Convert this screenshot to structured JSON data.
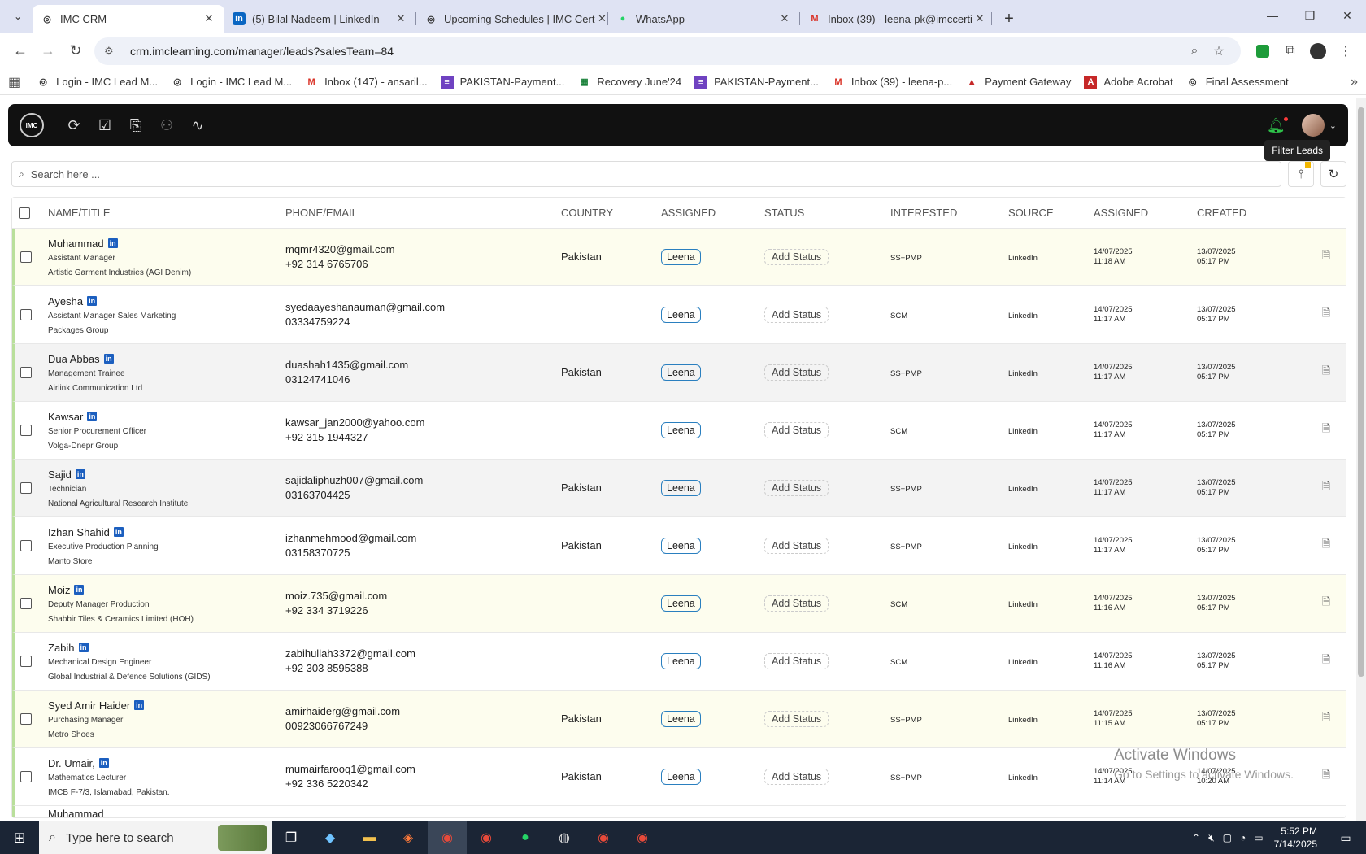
{
  "browser": {
    "tabs": [
      {
        "title": "IMC CRM",
        "active": true,
        "favicon": "imc-icon"
      },
      {
        "title": "(5) Bilal Nadeem | LinkedIn",
        "active": false,
        "favicon": "linkedin-icon"
      },
      {
        "title": "Upcoming Schedules | IMC Cert",
        "active": false,
        "favicon": "imc-icon"
      },
      {
        "title": "WhatsApp",
        "active": false,
        "favicon": "whatsapp-icon"
      },
      {
        "title": "Inbox (39) - leena-pk@imccerti",
        "active": false,
        "favicon": "gmail-icon"
      }
    ],
    "url": "crm.imclearning.com/manager/leads?salesTeam=84",
    "bookmarks": [
      {
        "label": "Login - IMC Lead M...",
        "icon": "imc-icon"
      },
      {
        "label": "Login - IMC Lead M...",
        "icon": "imc-icon"
      },
      {
        "label": "Inbox (147) - ansaril...",
        "icon": "gmail-icon"
      },
      {
        "label": "PAKISTAN-Payment...",
        "icon": "forms-icon"
      },
      {
        "label": "Recovery June'24",
        "icon": "sheets-icon"
      },
      {
        "label": "PAKISTAN-Payment...",
        "icon": "forms-icon"
      },
      {
        "label": "Inbox (39) - leena-p...",
        "icon": "gmail-icon"
      },
      {
        "label": "Payment Gateway",
        "icon": "payment-icon"
      },
      {
        "label": "Adobe Acrobat",
        "icon": "acrobat-icon"
      },
      {
        "label": "Final Assessment",
        "icon": "imc-icon"
      }
    ]
  },
  "app": {
    "tooltip": "Filter Leads",
    "search_placeholder": "Search here ...",
    "columns": {
      "name": "NAME/TITLE",
      "phone": "PHONE/EMAIL",
      "country": "COUNTRY",
      "assigned": "ASSIGNED",
      "status": "STATUS",
      "interested": "INTERESTED",
      "source": "SOURCE",
      "assigned2": "ASSIGNED",
      "created": "CREATED"
    },
    "rows": [
      {
        "name": "Muhammad",
        "title": "Assistant Manager",
        "company": "Artistic Garment Industries (AGI Denim)",
        "email": "mqmr4320@gmail.com",
        "phone": "+92 314 6765706",
        "country": "Pakistan",
        "assigned": "Leena",
        "status": "Add Status",
        "interested": "SS+PMP",
        "source": "LinkedIn",
        "assigned_date": "14/07/2025",
        "assigned_time": "11:18 AM",
        "created_date": "13/07/2025",
        "created_time": "05:17 PM",
        "bg": "bg-y"
      },
      {
        "name": "Ayesha",
        "title": "Assistant Manager Sales Marketing",
        "company": "Packages Group",
        "email": "syedaayeshanauman@gmail.com",
        "phone": "03334759224",
        "country": "",
        "assigned": "Leena",
        "status": "Add Status",
        "interested": "SCM",
        "source": "LinkedIn",
        "assigned_date": "14/07/2025",
        "assigned_time": "11:17 AM",
        "created_date": "13/07/2025",
        "created_time": "05:17 PM",
        "bg": "bg-w"
      },
      {
        "name": "Dua Abbas",
        "title": "Management Trainee",
        "company": "Airlink Communication Ltd",
        "email": "duashah1435@gmail.com",
        "phone": "03124741046",
        "country": "Pakistan",
        "assigned": "Leena",
        "status": "Add Status",
        "interested": "SS+PMP",
        "source": "LinkedIn",
        "assigned_date": "14/07/2025",
        "assigned_time": "11:17 AM",
        "created_date": "13/07/2025",
        "created_time": "05:17 PM",
        "bg": "bg-g"
      },
      {
        "name": "Kawsar",
        "title": "Senior Procurement Officer",
        "company": "Volga-Dnepr Group",
        "email": "kawsar_jan2000@yahoo.com",
        "phone": "+92 315 1944327",
        "country": "",
        "assigned": "Leena",
        "status": "Add Status",
        "interested": "SCM",
        "source": "LinkedIn",
        "assigned_date": "14/07/2025",
        "assigned_time": "11:17 AM",
        "created_date": "13/07/2025",
        "created_time": "05:17 PM",
        "bg": "bg-w"
      },
      {
        "name": "Sajid",
        "title": "Technician",
        "company": "National Agricultural Research Institute",
        "email": "sajidaliphuzh007@gmail.com",
        "phone": "03163704425",
        "country": "Pakistan",
        "assigned": "Leena",
        "status": "Add Status",
        "interested": "SS+PMP",
        "source": "LinkedIn",
        "assigned_date": "14/07/2025",
        "assigned_time": "11:17 AM",
        "created_date": "13/07/2025",
        "created_time": "05:17 PM",
        "bg": "bg-g"
      },
      {
        "name": "Izhan Shahid",
        "title": "Executive Production Planning",
        "company": "Manto Store",
        "email": "izhanmehmood@gmail.com",
        "phone": "03158370725",
        "country": "Pakistan",
        "assigned": "Leena",
        "status": "Add Status",
        "interested": "SS+PMP",
        "source": "LinkedIn",
        "assigned_date": "14/07/2025",
        "assigned_time": "11:17 AM",
        "created_date": "13/07/2025",
        "created_time": "05:17 PM",
        "bg": "bg-w"
      },
      {
        "name": "Moiz",
        "title": "Deputy Manager Production",
        "company": "Shabbir Tiles & Ceramics Limited (HOH)",
        "email": "moiz.735@gmail.com",
        "phone": "+92 334 3719226",
        "country": "",
        "assigned": "Leena",
        "status": "Add Status",
        "interested": "SCM",
        "source": "LinkedIn",
        "assigned_date": "14/07/2025",
        "assigned_time": "11:16 AM",
        "created_date": "13/07/2025",
        "created_time": "05:17 PM",
        "bg": "bg-y"
      },
      {
        "name": "Zabih",
        "title": "Mechanical Design Engineer",
        "company": "Global Industrial & Defence Solutions (GIDS)",
        "email": "zabihullah3372@gmail.com",
        "phone": "+92 303 8595388",
        "country": "",
        "assigned": "Leena",
        "status": "Add Status",
        "interested": "SCM",
        "source": "LinkedIn",
        "assigned_date": "14/07/2025",
        "assigned_time": "11:16 AM",
        "created_date": "13/07/2025",
        "created_time": "05:17 PM",
        "bg": "bg-w"
      },
      {
        "name": "Syed Amir Haider",
        "title": "Purchasing Manager",
        "company": "Metro Shoes",
        "email": "amirhaiderg@gmail.com",
        "phone": "00923066767249",
        "country": "Pakistan",
        "assigned": "Leena",
        "status": "Add Status",
        "interested": "SS+PMP",
        "source": "LinkedIn",
        "assigned_date": "14/07/2025",
        "assigned_time": "11:15 AM",
        "created_date": "13/07/2025",
        "created_time": "05:17 PM",
        "bg": "bg-y"
      },
      {
        "name": "Dr. Umair,",
        "title": "Mathematics Lecturer",
        "company": "IMCB F-7/3, Islamabad, Pakistan.",
        "email": "mumairfarooq1@gmail.com",
        "phone": "+92 336 5220342",
        "country": "Pakistan",
        "assigned": "Leena",
        "status": "Add Status",
        "interested": "SS+PMP",
        "source": "LinkedIn",
        "assigned_date": "14/07/2025",
        "assigned_time": "11:14 AM",
        "created_date": "14/07/2025",
        "created_time": "10:20 AM",
        "bg": "bg-w"
      }
    ],
    "partial_row_name": "Muhammad"
  },
  "watermark": {
    "line1": "Activate Windows",
    "line2": "Go to Settings to activate Windows."
  },
  "taskbar": {
    "search_placeholder": "Type here to search",
    "time": "5:52 PM",
    "date": "7/14/2025"
  }
}
